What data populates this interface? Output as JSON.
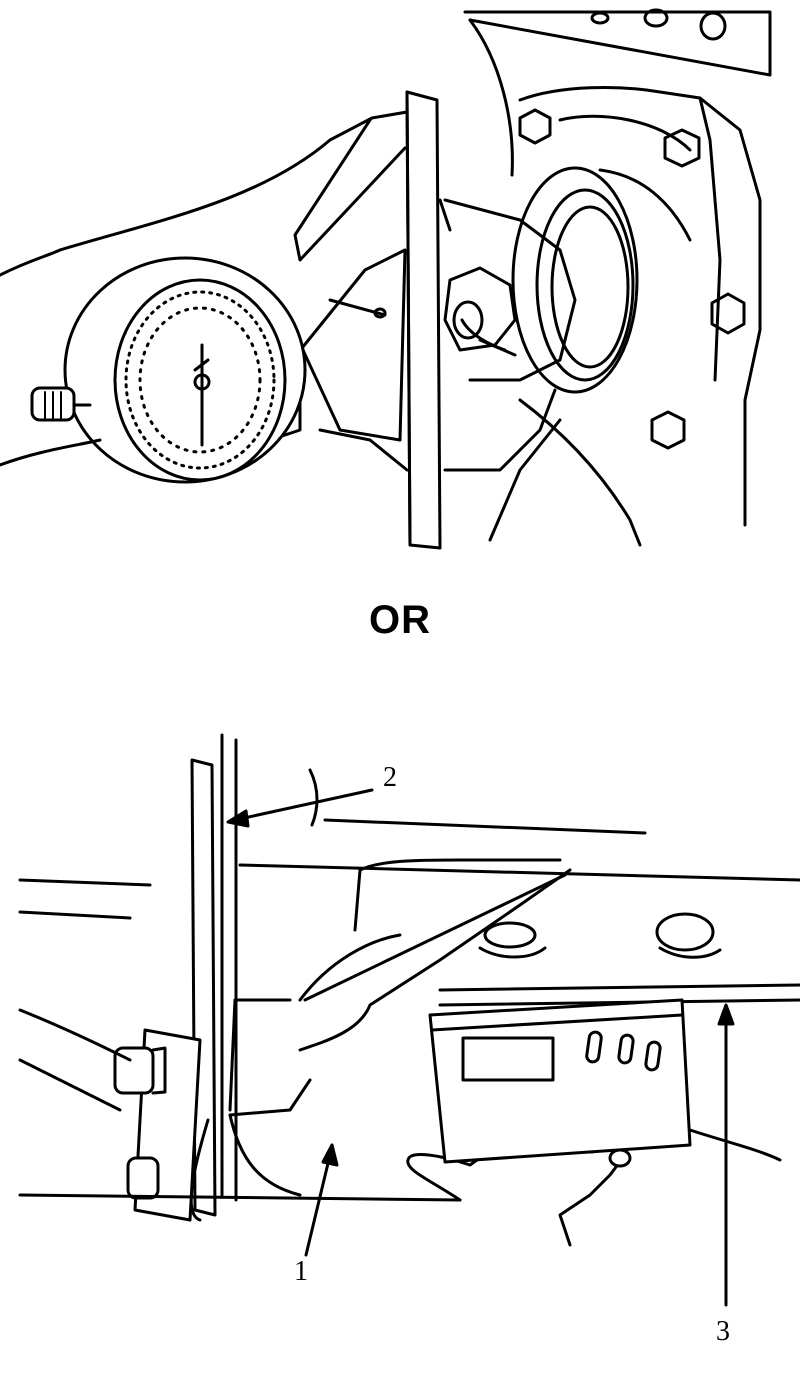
{
  "separator_text": "OR",
  "callouts": [
    {
      "id": "1",
      "label": "1"
    },
    {
      "id": "2",
      "label": "2"
    },
    {
      "id": "3",
      "label": "3"
    }
  ],
  "colors": {
    "ink": "#000000",
    "paper": "#ffffff"
  },
  "figures": [
    {
      "name": "dial-indicator-on-pinion-flange",
      "icon": "dial-gauge-icon"
    },
    {
      "name": "digital-inclinometer-on-driveline",
      "icon": "digital-inclinometer-icon"
    }
  ]
}
